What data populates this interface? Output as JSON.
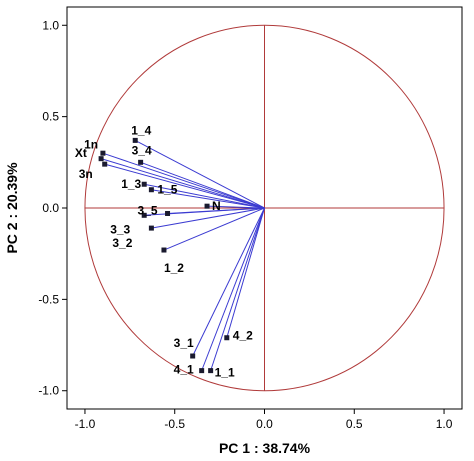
{
  "chart_data": {
    "type": "scatter",
    "subtype": "pca-correlation-circle",
    "title": "",
    "xlabel": "PC 1 : 38.74%",
    "ylabel": "PC 2 : 20.39%",
    "xlim": [
      -1.1,
      1.1
    ],
    "ylim": [
      -1.1,
      1.1
    ],
    "xticks": [
      -1.0,
      -0.5,
      0.0,
      0.5,
      1.0
    ],
    "yticks": [
      -1.0,
      -0.5,
      0.0,
      0.5,
      1.0
    ],
    "xtick_labels": [
      "-1.0",
      "-0.5",
      "0.0",
      "0.5",
      "1.0"
    ],
    "ytick_labels": [
      "-1.0",
      "-0.5",
      "0.0",
      "0.5",
      "1.0"
    ],
    "grid": false,
    "unit_circle": true,
    "circle_color": "#b03a3a",
    "vector_color": "#3b3bd1",
    "zero_line_color": "#b03a3a",
    "point_color": "#1a1a2e",
    "points": [
      {
        "label": "1n",
        "x": -0.91,
        "y": 0.27
      },
      {
        "label": "Xt",
        "x": -0.9,
        "y": 0.3
      },
      {
        "label": "3n",
        "x": -0.89,
        "y": 0.24
      },
      {
        "label": "1_4",
        "x": -0.72,
        "y": 0.37
      },
      {
        "label": "3_4",
        "x": -0.69,
        "y": 0.25
      },
      {
        "label": "1_3",
        "x": -0.67,
        "y": 0.13
      },
      {
        "label": "1_5",
        "x": -0.63,
        "y": 0.1
      },
      {
        "label": "3_5",
        "x": -0.54,
        "y": -0.03
      },
      {
        "label": "3_3",
        "x": -0.67,
        "y": -0.04
      },
      {
        "label": "N",
        "x": -0.32,
        "y": 0.01
      },
      {
        "label": "3_2",
        "x": -0.63,
        "y": -0.11
      },
      {
        "label": "1_2",
        "x": -0.56,
        "y": -0.23
      },
      {
        "label": "3_1",
        "x": -0.4,
        "y": -0.81
      },
      {
        "label": "4_1",
        "x": -0.35,
        "y": -0.89
      },
      {
        "label": "1_1",
        "x": -0.3,
        "y": -0.89
      },
      {
        "label": "4_2",
        "x": -0.21,
        "y": -0.71
      }
    ]
  }
}
